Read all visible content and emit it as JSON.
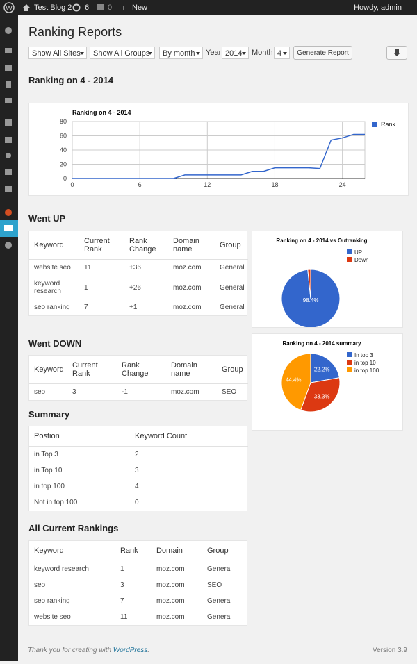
{
  "admin_bar": {
    "site": "Test Blog 2",
    "updates": "6",
    "comments": "0",
    "new": "New",
    "greeting": "Howdy, admin"
  },
  "page": {
    "title": "Ranking Reports"
  },
  "filters": {
    "site": "Show All Sites",
    "group": "Show All Groups",
    "period": "By month",
    "year_label": "Year",
    "year": "2014",
    "month_label": "Month",
    "month": "4",
    "button": "Generate Report"
  },
  "section_title": "Ranking on 4 - 2014",
  "line_chart": {
    "type": "line",
    "title": "Ranking on 4 - 2014",
    "x": [
      0,
      1,
      2,
      3,
      4,
      5,
      6,
      7,
      8,
      9,
      10,
      11,
      12,
      13,
      14,
      15,
      16,
      17,
      18,
      19,
      20,
      21,
      22,
      23,
      24,
      25,
      26
    ],
    "series": [
      {
        "name": "Rank",
        "color": "#3366cc",
        "values": [
          0,
          0,
          0,
          0,
          0,
          0,
          0,
          0,
          0,
          0,
          5,
          5,
          5,
          5,
          5,
          5,
          10,
          10,
          15,
          15,
          15,
          15,
          14,
          54,
          57,
          62,
          62
        ]
      }
    ],
    "xlim": [
      0,
      26
    ],
    "xticks": [
      0,
      6,
      12,
      18,
      24
    ],
    "ylim": [
      0,
      80
    ],
    "yticks": [
      0,
      20,
      40,
      60,
      80
    ],
    "grid": true,
    "legend": "right"
  },
  "went_up": {
    "title": "Went UP",
    "columns": [
      "Keyword",
      "Current Rank",
      "Rank Change",
      "Domain name",
      "Group"
    ],
    "rows": [
      [
        "website seo",
        "11",
        "+36",
        "moz.com",
        "General"
      ],
      [
        "keyword research",
        "1",
        "+26",
        "moz.com",
        "General"
      ],
      [
        "seo ranking",
        "7",
        "+1",
        "moz.com",
        "General"
      ]
    ]
  },
  "pie_up": {
    "type": "pie",
    "title": "Ranking on 4 - 2014 vs Outranking",
    "categories": [
      "UP",
      "Down"
    ],
    "values": [
      98.4,
      1.6
    ],
    "value_labels": [
      "98.4%",
      null
    ],
    "colors": [
      "#3366cc",
      "#dc3912"
    ],
    "legend": "right"
  },
  "went_down": {
    "title": "Went DOWN",
    "columns": [
      "Keyword",
      "Current Rank",
      "Rank Change",
      "Domain name",
      "Group"
    ],
    "rows": [
      [
        "seo",
        "3",
        "-1",
        "moz.com",
        "SEO"
      ]
    ]
  },
  "pie_summary": {
    "type": "pie",
    "title": "Ranking on 4 - 2014 summary",
    "categories": [
      "In top 3",
      "in top 10",
      "in top 100"
    ],
    "values": [
      22.2,
      33.3,
      44.4
    ],
    "value_labels": [
      "22.2%",
      "33.3%",
      "44.4%"
    ],
    "colors": [
      "#3366cc",
      "#dc3912",
      "#ff9900"
    ],
    "legend": "right"
  },
  "summary": {
    "title": "Summary",
    "columns": [
      "Postion",
      "Keyword Count"
    ],
    "rows": [
      [
        "in Top 3",
        "2"
      ],
      [
        "in Top 10",
        "3"
      ],
      [
        "in top 100",
        "4"
      ],
      [
        "Not in top 100",
        "0"
      ]
    ]
  },
  "all_rankings": {
    "title": "All Current Rankings",
    "columns": [
      "Keyword",
      "Rank",
      "Domain",
      "Group"
    ],
    "rows": [
      [
        "keyword research",
        "1",
        "moz.com",
        "General"
      ],
      [
        "seo",
        "3",
        "moz.com",
        "SEO"
      ],
      [
        "seo ranking",
        "7",
        "moz.com",
        "General"
      ],
      [
        "website seo",
        "11",
        "moz.com",
        "General"
      ]
    ]
  },
  "footer": {
    "parts": [
      "Thank you for creating with ",
      "WordPress",
      "."
    ],
    "version": "Version 3.9"
  }
}
